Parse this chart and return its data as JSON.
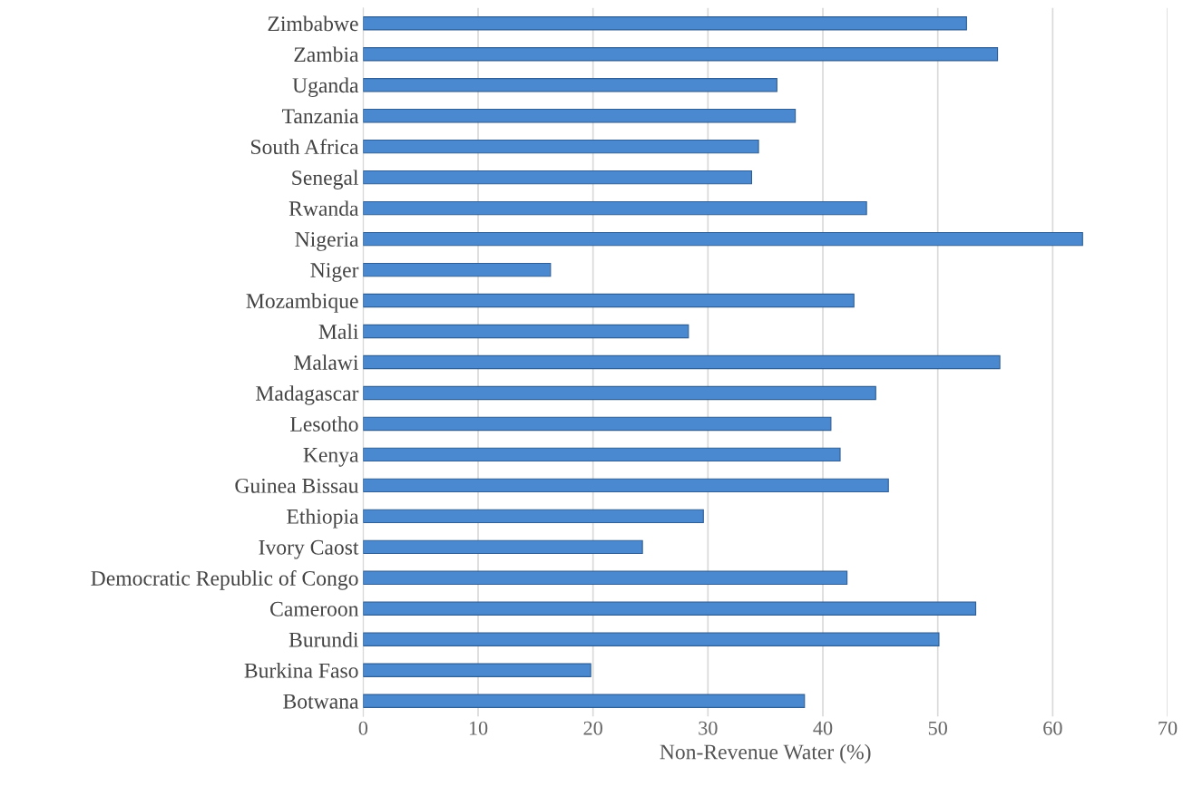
{
  "chart_data": {
    "type": "bar",
    "orientation": "horizontal",
    "xlabel": "Non-Revenue Water (%)",
    "categories": [
      "Zimbabwe",
      "Zambia",
      "Uganda",
      "Tanzania",
      "South Africa",
      "Senegal",
      "Rwanda",
      "Nigeria",
      "Niger",
      "Mozambique",
      "Mali",
      "Malawi",
      "Madagascar",
      "Lesotho",
      "Kenya",
      "Guinea Bissau",
      "Ethiopia",
      "Ivory Caost",
      "Democratic Republic of Congo",
      "Cameroon",
      "Burundi",
      "Burkina Faso",
      "Botwana"
    ],
    "values": [
      52.5,
      55.2,
      36.0,
      37.6,
      34.4,
      33.8,
      43.8,
      62.6,
      16.3,
      42.7,
      28.3,
      55.4,
      44.6,
      40.7,
      41.5,
      45.7,
      29.6,
      24.3,
      42.1,
      53.3,
      50.1,
      19.8,
      38.4
    ],
    "color": "#4a89cf",
    "xlim": [
      0,
      70
    ],
    "xticks": [
      0,
      10,
      20,
      30,
      40,
      50,
      60,
      70
    ],
    "grid": "x"
  }
}
